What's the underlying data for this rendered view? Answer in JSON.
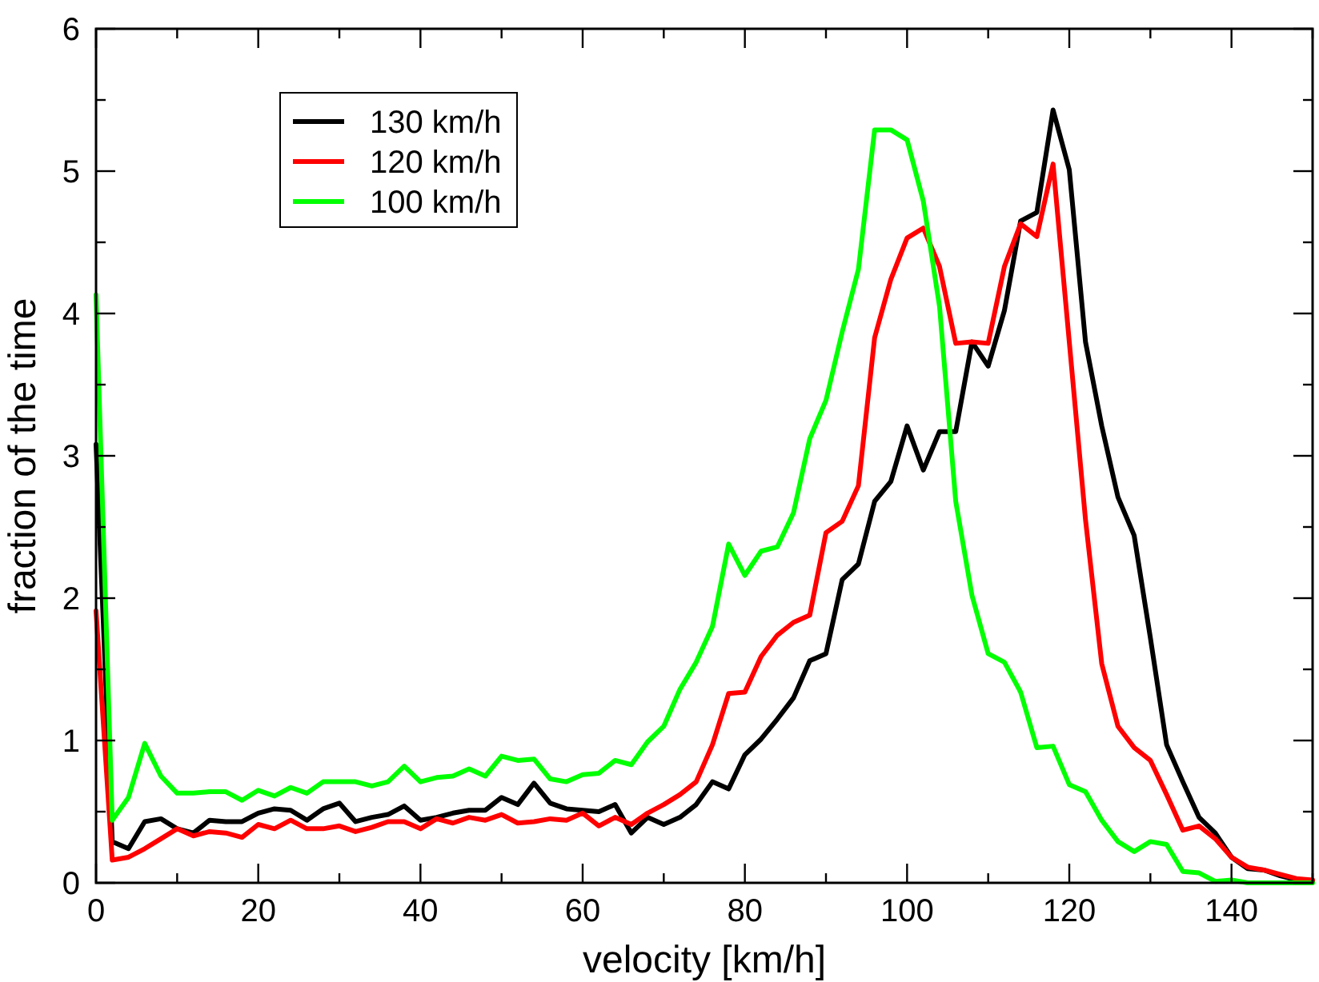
{
  "chart_data": {
    "type": "line",
    "xlabel": "velocity [km/h]",
    "ylabel": "fraction of the time",
    "x": [
      0,
      2,
      4,
      6,
      8,
      10,
      12,
      14,
      16,
      18,
      20,
      22,
      24,
      26,
      28,
      30,
      32,
      34,
      36,
      38,
      40,
      42,
      44,
      46,
      48,
      50,
      52,
      54,
      56,
      58,
      60,
      62,
      64,
      66,
      68,
      70,
      72,
      74,
      76,
      78,
      80,
      82,
      84,
      86,
      88,
      90,
      92,
      94,
      96,
      98,
      100,
      102,
      104,
      106,
      108,
      110,
      112,
      114,
      116,
      118,
      120,
      122,
      124,
      126,
      128,
      130,
      132,
      134,
      136,
      138,
      140,
      142,
      144,
      146,
      148,
      150
    ],
    "series": [
      {
        "name": "130 km/h",
        "color": "#000000",
        "values": [
          3.08,
          0.29,
          0.24,
          0.43,
          0.45,
          0.38,
          0.35,
          0.44,
          0.43,
          0.43,
          0.49,
          0.52,
          0.51,
          0.44,
          0.52,
          0.56,
          0.43,
          0.46,
          0.48,
          0.54,
          0.44,
          0.46,
          0.49,
          0.51,
          0.51,
          0.6,
          0.55,
          0.7,
          0.56,
          0.52,
          0.51,
          0.5,
          0.55,
          0.35,
          0.46,
          0.41,
          0.46,
          0.55,
          0.71,
          0.66,
          0.9,
          1.01,
          1.15,
          1.3,
          1.56,
          1.61,
          2.13,
          2.24,
          2.68,
          2.82,
          3.21,
          2.9,
          3.17,
          3.17,
          3.8,
          3.63,
          4.02,
          4.65,
          4.71,
          5.43,
          5.01,
          3.8,
          3.21,
          2.71,
          2.44,
          1.72,
          0.97,
          0.71,
          0.46,
          0.35,
          0.18,
          0.1,
          0.09,
          0.05,
          0.02,
          0.01
        ]
      },
      {
        "name": "120 km/h",
        "color": "#ff0000",
        "values": [
          1.91,
          0.16,
          0.18,
          0.24,
          0.31,
          0.38,
          0.33,
          0.36,
          0.35,
          0.32,
          0.41,
          0.38,
          0.44,
          0.38,
          0.38,
          0.4,
          0.36,
          0.39,
          0.43,
          0.43,
          0.38,
          0.45,
          0.42,
          0.46,
          0.44,
          0.48,
          0.42,
          0.43,
          0.45,
          0.44,
          0.49,
          0.4,
          0.46,
          0.41,
          0.49,
          0.55,
          0.62,
          0.71,
          0.97,
          1.33,
          1.34,
          1.59,
          1.74,
          1.83,
          1.88,
          2.46,
          2.54,
          2.79,
          3.83,
          4.24,
          4.53,
          4.6,
          4.33,
          3.79,
          3.8,
          3.79,
          4.33,
          4.63,
          4.54,
          5.05,
          3.8,
          2.55,
          1.54,
          1.1,
          0.95,
          0.86,
          0.62,
          0.37,
          0.4,
          0.31,
          0.18,
          0.11,
          0.09,
          0.06,
          0.03,
          0.02
        ]
      },
      {
        "name": "100 km/h",
        "color": "#00ff00",
        "values": [
          4.13,
          0.44,
          0.6,
          0.98,
          0.75,
          0.63,
          0.63,
          0.64,
          0.64,
          0.58,
          0.65,
          0.61,
          0.67,
          0.63,
          0.71,
          0.71,
          0.71,
          0.68,
          0.71,
          0.82,
          0.71,
          0.74,
          0.75,
          0.8,
          0.75,
          0.89,
          0.86,
          0.87,
          0.73,
          0.71,
          0.76,
          0.77,
          0.86,
          0.83,
          0.99,
          1.1,
          1.36,
          1.55,
          1.8,
          2.38,
          2.16,
          2.33,
          2.36,
          2.6,
          3.12,
          3.39,
          3.87,
          4.31,
          5.29,
          5.29,
          5.22,
          4.79,
          4.05,
          2.68,
          2.02,
          1.61,
          1.55,
          1.34,
          0.95,
          0.96,
          0.69,
          0.64,
          0.44,
          0.29,
          0.22,
          0.29,
          0.27,
          0.08,
          0.07,
          0.01,
          0.02,
          0,
          0,
          0,
          0,
          0
        ]
      }
    ],
    "xlim": [
      0,
      150
    ],
    "xticks": [
      0,
      {
        "value": 10,
        "label": null
      },
      20,
      {
        "value": 30,
        "label": null
      },
      40,
      {
        "value": 50,
        "label": null
      },
      60,
      {
        "value": 70,
        "label": null
      },
      80,
      {
        "value": 90,
        "label": null
      },
      100,
      {
        "value": 110,
        "label": null
      },
      120,
      {
        "value": 130,
        "label": null
      },
      140,
      {
        "value": 150,
        "label": null
      }
    ],
    "ylim": [
      0,
      6
    ],
    "yticks": [
      0,
      {
        "value": 0.5,
        "label": null
      },
      1,
      {
        "value": 1.5,
        "label": null
      },
      2,
      {
        "value": 2.5,
        "label": null
      },
      3,
      {
        "value": 3.5,
        "label": null
      },
      4,
      {
        "value": 4.5,
        "label": null
      },
      5,
      {
        "value": 5.5,
        "label": null
      },
      6
    ],
    "grid": false,
    "legend": "top left",
    "marker": "none",
    "line_style": "solid"
  }
}
